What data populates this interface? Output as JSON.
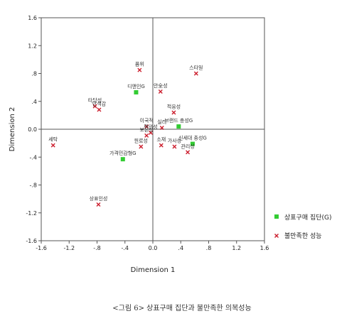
{
  "chart_data": {
    "type": "scatter",
    "xlabel": "Dimension 1",
    "ylabel": "Dimension 2",
    "xlim": [
      -1.6,
      1.6
    ],
    "ylim": [
      -1.6,
      1.6
    ],
    "xticks": [
      "-1.6",
      "-1.2",
      "-.8",
      "-.4",
      "0.0",
      ".4",
      ".8",
      "1.2",
      "1.6"
    ],
    "yticks": [
      "1.6",
      "1.2",
      ".8",
      ".4",
      "0.0",
      "-.4",
      "-.8",
      "-1.2",
      "-1.6"
    ],
    "xtick_values": [
      -1.6,
      -1.2,
      -0.8,
      -0.4,
      0.0,
      0.4,
      0.8,
      1.2,
      1.6
    ],
    "ytick_values": [
      1.6,
      1.2,
      0.8,
      0.4,
      0.0,
      -0.4,
      -0.8,
      -1.2,
      -1.6
    ],
    "reference_lines": {
      "x": 0,
      "y": 0
    },
    "legend_position": "right",
    "series": [
      {
        "name": "상표구매 집단(G)",
        "marker": "square",
        "color": "#33cc33",
        "points": [
          {
            "label": "디앤인G",
            "x": -0.24,
            "y": 0.53
          },
          {
            "label": "브랜드 충성G",
            "x": 0.37,
            "y": 0.04
          },
          {
            "label": "신세대 충성G",
            "x": 0.57,
            "y": -0.21
          },
          {
            "label": "가격민감형G",
            "x": -0.43,
            "y": -0.43
          }
        ]
      },
      {
        "name": "불만족한 성능",
        "marker": "cross",
        "color": "#cc1f2e",
        "points": [
          {
            "label": "품위",
            "x": -0.19,
            "y": 0.85
          },
          {
            "label": "스타일",
            "x": 0.62,
            "y": 0.8
          },
          {
            "label": "안全성",
            "x": 0.11,
            "y": 0.54
          },
          {
            "label": "타당성",
            "x": -0.83,
            "y": 0.33
          },
          {
            "label": "단색감",
            "x": -0.77,
            "y": 0.28
          },
          {
            "label": "적응성",
            "x": 0.3,
            "y": 0.24
          },
          {
            "label": "이국적",
            "x": -0.09,
            "y": 0.04
          },
          {
            "label": "실리",
            "x": 0.13,
            "y": 0.02
          },
          {
            "label": "편안성",
            "x": -0.03,
            "y": -0.05
          },
          {
            "label": "보온성",
            "x": -0.09,
            "y": -0.09
          },
          {
            "label": "세탁",
            "x": -1.43,
            "y": -0.23
          },
          {
            "label": "원료성",
            "x": -0.17,
            "y": -0.25
          },
          {
            "label": "소재",
            "x": 0.12,
            "y": -0.23
          },
          {
            "label": "가사성",
            "x": 0.31,
            "y": -0.25
          },
          {
            "label": "관리성",
            "x": 0.5,
            "y": -0.33
          },
          {
            "label": "상표인성",
            "x": -0.78,
            "y": -1.08
          }
        ]
      }
    ]
  },
  "caption": "<그림 6> 상표구매 집단과 불만족한 의복성능"
}
